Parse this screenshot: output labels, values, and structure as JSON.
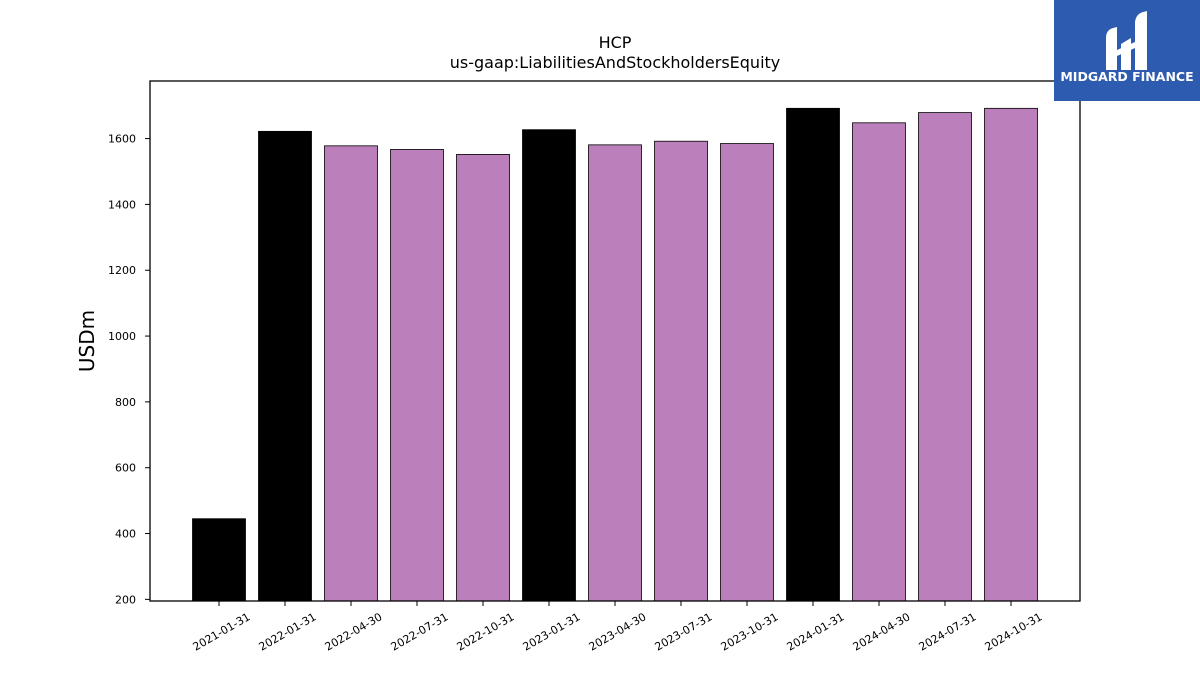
{
  "chart_data": {
    "type": "bar",
    "title": "HCP",
    "subtitle": "us-gaap:LiabilitiesAndStockholdersEquity",
    "xlabel": "",
    "ylabel": "USDm",
    "ylim": [
      195,
      1775
    ],
    "yticks": [
      200,
      400,
      600,
      800,
      1000,
      1200,
      1400,
      1600
    ],
    "grid": false,
    "categories": [
      "2021-01-31",
      "2022-01-31",
      "2022-04-30",
      "2022-07-31",
      "2022-10-31",
      "2023-01-31",
      "2023-04-30",
      "2023-07-31",
      "2023-10-31",
      "2024-01-31",
      "2024-04-30",
      "2024-07-31",
      "2024-10-31"
    ],
    "values": [
      445,
      1622,
      1578,
      1567,
      1552,
      1627,
      1581,
      1592,
      1585,
      1692,
      1648,
      1679,
      1692
    ],
    "bar_colors": [
      "#000000",
      "#000000",
      "#bb80bb",
      "#bb80bb",
      "#bb80bb",
      "#000000",
      "#bb80bb",
      "#bb80bb",
      "#bb80bb",
      "#000000",
      "#bb80bb",
      "#bb80bb",
      "#bb80bb"
    ]
  },
  "logo": {
    "text": "MIDGARD FINANCE",
    "background": "#2d5baf"
  }
}
